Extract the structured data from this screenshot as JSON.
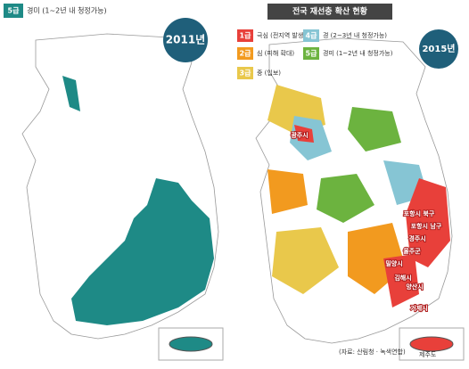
{
  "left": {
    "badge": "5급",
    "legend_text": "경미 (1~2년 내 청정가능)",
    "year": "2011년"
  },
  "right": {
    "title": "전국 재선충 확산 현황",
    "legend": [
      {
        "grade": "1급",
        "text": "극심 (전지역 발생)"
      },
      {
        "grade": "2급",
        "text": "심 (피해 확대)"
      },
      {
        "grade": "3급",
        "text": "중 (입보)"
      },
      {
        "grade": "4급",
        "text": "경 (2~3년 내 청정가능)"
      },
      {
        "grade": "5급",
        "text": "경미 (1~2년 내 청정가능)"
      }
    ],
    "year": "2015년",
    "region_labels": [
      "광주시",
      "포항시 북구",
      "포항시 남구",
      "경주시",
      "울주군",
      "밀양시",
      "김해시",
      "양산시",
      "거제시"
    ],
    "jeju": "제주도",
    "source": "(자료: 산림청 · 녹색연합)"
  }
}
